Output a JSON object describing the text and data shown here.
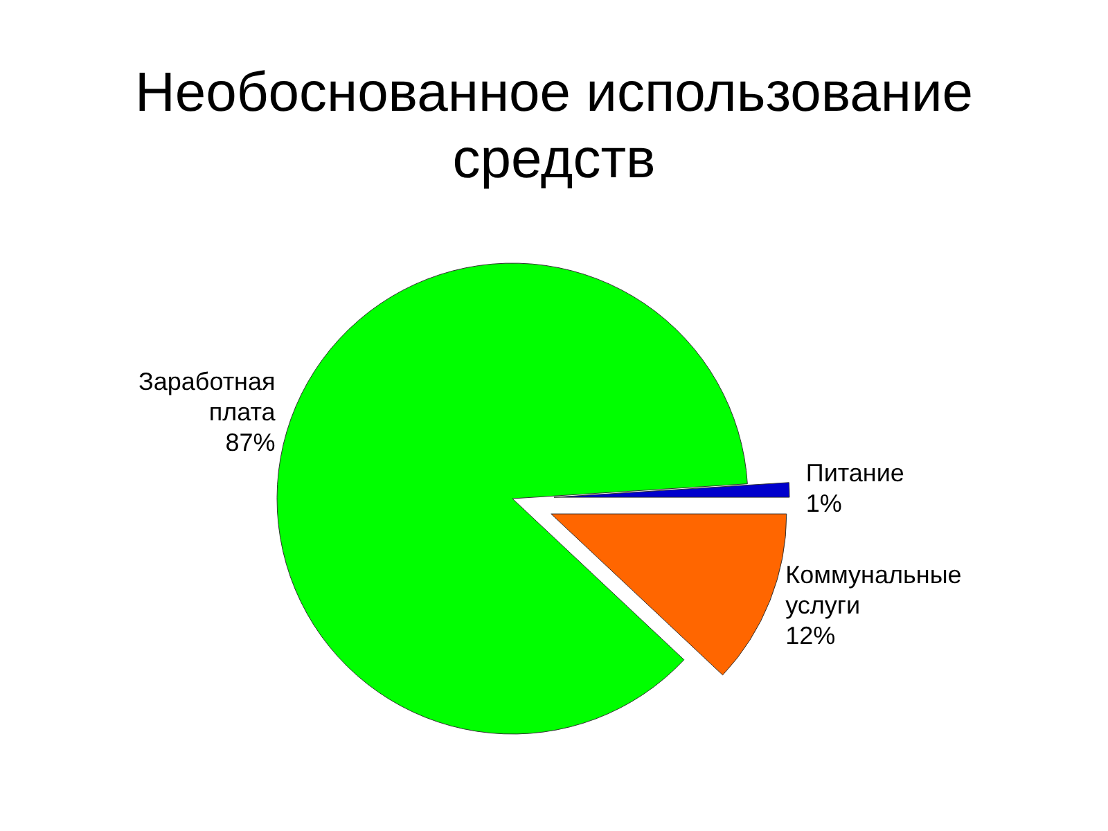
{
  "chart_data": {
    "type": "pie",
    "title": "Необоснованное использование средств",
    "categories": [
      "Заработная плата",
      "Питание",
      "Коммунальные услуги"
    ],
    "values": [
      87,
      1,
      12
    ],
    "colors": [
      "#00ff00",
      "#0000cc",
      "#ff6600"
    ],
    "value_labels": [
      "87%",
      "1%",
      "12%"
    ]
  }
}
